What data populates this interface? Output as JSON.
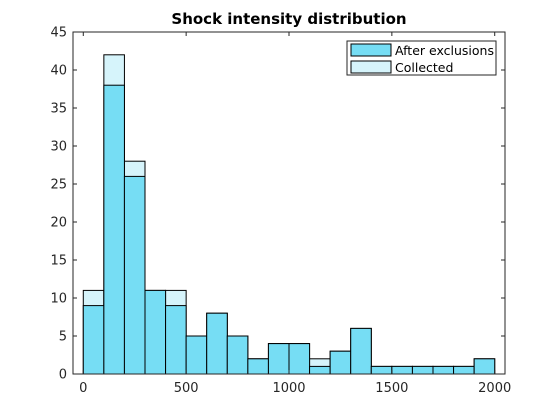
{
  "chart_data": {
    "type": "bar",
    "title": "Shock intensity distribution",
    "xlabel": "",
    "ylabel": "",
    "xlim": [
      -50,
      2050
    ],
    "ylim": [
      0,
      45
    ],
    "xticks": [
      0,
      500,
      1000,
      1500,
      2000
    ],
    "yticks": [
      0,
      5,
      10,
      15,
      20,
      25,
      30,
      35,
      40,
      45
    ],
    "bin_edges": [
      0,
      100,
      200,
      300,
      400,
      500,
      600,
      700,
      800,
      900,
      1000,
      1100,
      1200,
      1300,
      1400,
      1500,
      1600,
      1700,
      1800,
      1900,
      2000
    ],
    "series": [
      {
        "name": "After exclusions",
        "color": "#76DDF4",
        "values": [
          9,
          38,
          26,
          11,
          9,
          5,
          8,
          5,
          2,
          4,
          4,
          1,
          3,
          6,
          1,
          1,
          1,
          1,
          1,
          2
        ]
      },
      {
        "name": "Collected",
        "color": "#D6F4FB",
        "values": [
          11,
          42,
          28,
          11,
          11,
          5,
          8,
          5,
          2,
          4,
          4,
          2,
          3,
          6,
          1,
          1,
          1,
          1,
          1,
          2
        ]
      }
    ],
    "grid": false,
    "legend_position": "top-right"
  }
}
